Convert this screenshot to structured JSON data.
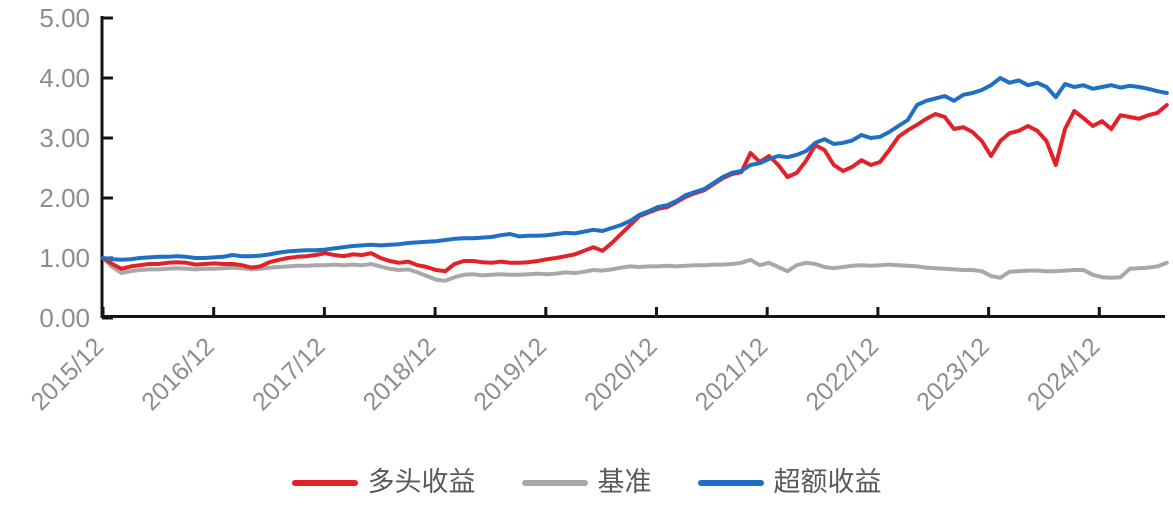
{
  "chart_data": {
    "type": "line",
    "title": "",
    "xlabel": "",
    "ylabel": "",
    "ylim": [
      0,
      5
    ],
    "grid": false,
    "legend_position": "bottom",
    "y_tick_labels": [
      "0.00",
      "1.00",
      "2.00",
      "3.00",
      "4.00",
      "5.00"
    ],
    "x_tick_labels": [
      "2015/12",
      "2016/12",
      "2017/12",
      "2018/12",
      "2019/12",
      "2020/12",
      "2021/12",
      "2022/12",
      "2023/12",
      "2024/12"
    ],
    "x_start": "2015/12",
    "x_frequency": "monthly",
    "series": [
      {
        "name": "多头收益",
        "color": "#e22128",
        "values": [
          1.0,
          0.9,
          0.82,
          0.86,
          0.88,
          0.9,
          0.9,
          0.92,
          0.93,
          0.92,
          0.89,
          0.9,
          0.91,
          0.9,
          0.9,
          0.88,
          0.84,
          0.86,
          0.93,
          0.97,
          1.0,
          1.02,
          1.03,
          1.05,
          1.08,
          1.05,
          1.03,
          1.06,
          1.05,
          1.08,
          1.0,
          0.95,
          0.92,
          0.94,
          0.88,
          0.85,
          0.8,
          0.78,
          0.9,
          0.95,
          0.95,
          0.93,
          0.92,
          0.94,
          0.92,
          0.92,
          0.93,
          0.95,
          0.98,
          1.0,
          1.03,
          1.06,
          1.12,
          1.18,
          1.12,
          1.25,
          1.4,
          1.55,
          1.7,
          1.76,
          1.82,
          1.85,
          1.93,
          2.02,
          2.08,
          2.13,
          2.23,
          2.33,
          2.4,
          2.43,
          2.75,
          2.6,
          2.7,
          2.55,
          2.35,
          2.42,
          2.62,
          2.88,
          2.8,
          2.55,
          2.45,
          2.52,
          2.63,
          2.55,
          2.6,
          2.8,
          3.02,
          3.13,
          3.22,
          3.32,
          3.4,
          3.35,
          3.15,
          3.18,
          3.1,
          2.95,
          2.7,
          2.95,
          3.08,
          3.12,
          3.2,
          3.12,
          2.95,
          2.55,
          3.15,
          3.45,
          3.33,
          3.2,
          3.28,
          3.15,
          3.38,
          3.35,
          3.32,
          3.38,
          3.42,
          3.55
        ]
      },
      {
        "name": "基准",
        "color": "#a8a8a8",
        "values": [
          1.0,
          0.85,
          0.75,
          0.78,
          0.8,
          0.81,
          0.81,
          0.82,
          0.83,
          0.82,
          0.81,
          0.82,
          0.82,
          0.83,
          0.84,
          0.83,
          0.81,
          0.82,
          0.84,
          0.85,
          0.86,
          0.87,
          0.87,
          0.88,
          0.88,
          0.89,
          0.88,
          0.89,
          0.88,
          0.9,
          0.86,
          0.82,
          0.8,
          0.81,
          0.76,
          0.7,
          0.64,
          0.62,
          0.68,
          0.72,
          0.73,
          0.71,
          0.72,
          0.73,
          0.72,
          0.72,
          0.73,
          0.74,
          0.73,
          0.74,
          0.76,
          0.75,
          0.77,
          0.8,
          0.79,
          0.81,
          0.84,
          0.86,
          0.85,
          0.86,
          0.86,
          0.87,
          0.86,
          0.87,
          0.88,
          0.88,
          0.89,
          0.89,
          0.9,
          0.92,
          0.97,
          0.88,
          0.92,
          0.85,
          0.78,
          0.88,
          0.92,
          0.9,
          0.85,
          0.83,
          0.85,
          0.87,
          0.88,
          0.87,
          0.88,
          0.89,
          0.88,
          0.87,
          0.86,
          0.84,
          0.83,
          0.82,
          0.81,
          0.8,
          0.8,
          0.78,
          0.7,
          0.67,
          0.77,
          0.78,
          0.79,
          0.79,
          0.78,
          0.78,
          0.79,
          0.8,
          0.8,
          0.72,
          0.68,
          0.67,
          0.68,
          0.82,
          0.83,
          0.84,
          0.86,
          0.92
        ]
      },
      {
        "name": "超额收益",
        "color": "#1f6fc4",
        "values": [
          1.0,
          0.98,
          0.97,
          0.98,
          1.0,
          1.01,
          1.02,
          1.02,
          1.03,
          1.02,
          1.0,
          1.0,
          1.01,
          1.02,
          1.05,
          1.03,
          1.03,
          1.04,
          1.06,
          1.09,
          1.11,
          1.12,
          1.13,
          1.13,
          1.14,
          1.16,
          1.18,
          1.2,
          1.21,
          1.22,
          1.21,
          1.22,
          1.23,
          1.25,
          1.26,
          1.27,
          1.28,
          1.3,
          1.32,
          1.33,
          1.33,
          1.34,
          1.35,
          1.38,
          1.4,
          1.36,
          1.37,
          1.37,
          1.38,
          1.4,
          1.42,
          1.41,
          1.44,
          1.47,
          1.45,
          1.5,
          1.55,
          1.62,
          1.72,
          1.78,
          1.85,
          1.88,
          1.95,
          2.05,
          2.1,
          2.15,
          2.25,
          2.35,
          2.42,
          2.45,
          2.55,
          2.58,
          2.65,
          2.7,
          2.68,
          2.72,
          2.78,
          2.92,
          2.98,
          2.9,
          2.92,
          2.96,
          3.05,
          3.0,
          3.02,
          3.1,
          3.2,
          3.3,
          3.55,
          3.62,
          3.66,
          3.7,
          3.62,
          3.72,
          3.75,
          3.8,
          3.88,
          4.0,
          3.92,
          3.96,
          3.88,
          3.92,
          3.85,
          3.68,
          3.9,
          3.85,
          3.88,
          3.82,
          3.85,
          3.88,
          3.84,
          3.87,
          3.85,
          3.82,
          3.78,
          3.75
        ]
      }
    ],
    "draw_order": [
      1,
      0,
      2
    ],
    "colors": {
      "axis": "#141414",
      "tick_label": "#8d8d8d",
      "legend_text": "#595959"
    }
  }
}
